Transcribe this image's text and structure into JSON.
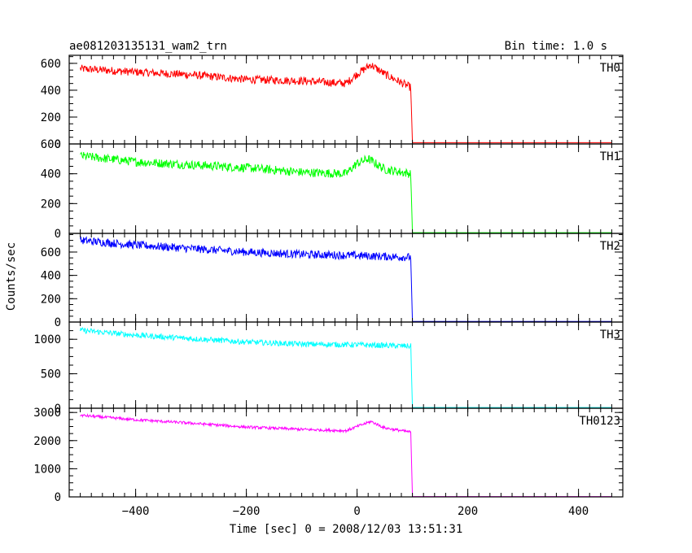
{
  "chart_data": {
    "type": "line",
    "title": "ae081203135131_wam2_trn",
    "subtitle": "Bin time: 1.0 s",
    "xlabel": "Time [sec] 0 = 2008/12/03 13:51:31",
    "ylabel": "Counts/sec",
    "xlim": [
      -520,
      480
    ],
    "x_ticks": [
      -400,
      -200,
      0,
      200,
      400
    ],
    "grid": false,
    "panels": [
      {
        "name": "TH0",
        "color": "#ff0000",
        "ylim": [
          0,
          660
        ],
        "y_ticks": [
          0,
          200,
          400,
          600
        ],
        "noise": 30,
        "points": [
          [
            -500,
            560
          ],
          [
            -400,
            535
          ],
          [
            -300,
            515
          ],
          [
            -200,
            480
          ],
          [
            -100,
            470
          ],
          [
            -20,
            450
          ],
          [
            0,
            520
          ],
          [
            25,
            590
          ],
          [
            50,
            520
          ],
          [
            97,
            420
          ],
          [
            100,
            10
          ],
          [
            460,
            10
          ]
        ]
      },
      {
        "name": "TH1",
        "color": "#00ff00",
        "ylim": [
          0,
          600
        ],
        "y_ticks": [
          0,
          200,
          400,
          600
        ],
        "noise": 30,
        "points": [
          [
            -500,
            520
          ],
          [
            -400,
            480
          ],
          [
            -300,
            460
          ],
          [
            -200,
            440
          ],
          [
            -100,
            410
          ],
          [
            -20,
            400
          ],
          [
            0,
            470
          ],
          [
            20,
            500
          ],
          [
            50,
            430
          ],
          [
            97,
            400
          ],
          [
            100,
            5
          ],
          [
            460,
            5
          ]
        ]
      },
      {
        "name": "TH2",
        "color": "#0000ff",
        "ylim": [
          0,
          760
        ],
        "y_ticks": [
          0,
          200,
          400,
          600
        ],
        "noise": 35,
        "points": [
          [
            -500,
            700
          ],
          [
            -400,
            660
          ],
          [
            -300,
            630
          ],
          [
            -200,
            600
          ],
          [
            -100,
            580
          ],
          [
            0,
            570
          ],
          [
            97,
            555
          ],
          [
            100,
            5
          ],
          [
            460,
            5
          ]
        ]
      },
      {
        "name": "TH3",
        "color": "#00ffff",
        "ylim": [
          0,
          1250
        ],
        "y_ticks": [
          0,
          500,
          1000
        ],
        "noise": 40,
        "points": [
          [
            -500,
            1130
          ],
          [
            -400,
            1060
          ],
          [
            -300,
            1010
          ],
          [
            -200,
            960
          ],
          [
            -100,
            930
          ],
          [
            0,
            920
          ],
          [
            97,
            900
          ],
          [
            100,
            10
          ],
          [
            460,
            10
          ]
        ]
      },
      {
        "name": "TH0123",
        "color": "#ff00ff",
        "ylim": [
          0,
          3150
        ],
        "y_ticks": [
          0,
          1000,
          2000,
          3000
        ],
        "noise": 50,
        "points": [
          [
            -500,
            2900
          ],
          [
            -400,
            2740
          ],
          [
            -300,
            2620
          ],
          [
            -200,
            2480
          ],
          [
            -100,
            2400
          ],
          [
            -20,
            2350
          ],
          [
            0,
            2500
          ],
          [
            25,
            2680
          ],
          [
            50,
            2450
          ],
          [
            97,
            2300
          ],
          [
            100,
            10
          ],
          [
            460,
            10
          ]
        ]
      }
    ]
  }
}
